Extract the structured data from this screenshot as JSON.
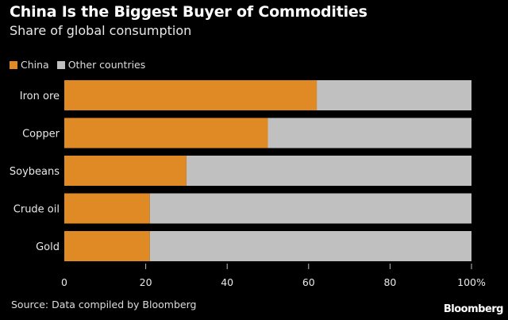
{
  "chart_data": {
    "type": "bar",
    "orientation": "horizontal",
    "stacked": true,
    "title": "China Is the Biggest Buyer of Commodities",
    "subtitle": "Share of global consumption",
    "categories": [
      "Iron ore",
      "Copper",
      "Soybeans",
      "Crude oil",
      "Gold"
    ],
    "series": [
      {
        "name": "China",
        "color": "#e08a25",
        "values": [
          62,
          50,
          30,
          21,
          21
        ]
      },
      {
        "name": "Other countries",
        "color": "#c0c0c0",
        "values": [
          38,
          50,
          70,
          79,
          79
        ]
      }
    ],
    "xlim": [
      0,
      100
    ],
    "xticks": [
      "0",
      "20",
      "40",
      "60",
      "80",
      "100%"
    ],
    "xlabel": "",
    "ylabel": "",
    "legend_position": "top-left",
    "source": "Source: Data compiled by Bloomberg",
    "brand": "Bloomberg"
  }
}
